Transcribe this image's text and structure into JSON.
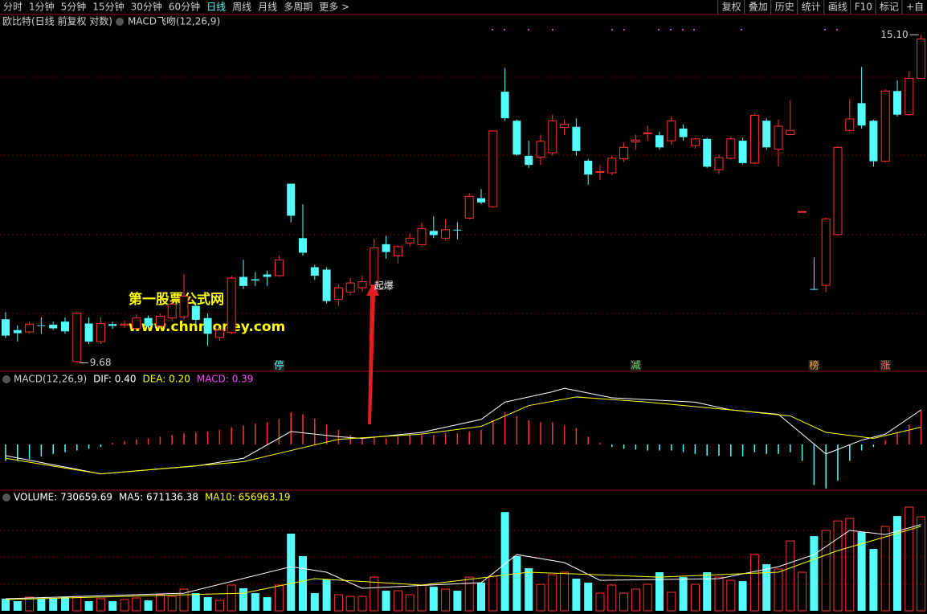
{
  "toolbar": {
    "left": [
      "分时",
      "1分钟",
      "5分钟",
      "15分钟",
      "30分钟",
      "60分钟",
      "日线",
      "周线",
      "月线",
      "多周期",
      "更多 >"
    ],
    "active": 6,
    "right": [
      "复权",
      "叠加",
      "历史",
      "统计",
      "画线",
      "F10",
      "标记",
      "+自"
    ]
  },
  "watermark": [
    "第一股票公式网",
    "www.chnmoney.com"
  ],
  "chart_data": [
    {
      "type": "candlestick",
      "title": "欧比特(日线 前复权 对数)",
      "indicator": "MACD飞吻(12,26,9)",
      "up_color": "#ff3232",
      "down_color": "#54fcfc",
      "ylim": [
        9.54,
        15.21
      ],
      "open": [
        10.4,
        10.22,
        10.19,
        10.3,
        10.31,
        10.36,
        9.7,
        10.33,
        10.03,
        10.32,
        10.3,
        10.25,
        10.42,
        10.29,
        10.42,
        10.44,
        10.62,
        10.42,
        10.1,
        10.18,
        11.1,
        11.06,
        11.14,
        11.12,
        12.64,
        11.74,
        11.26,
        11.22,
        10.73,
        10.85,
        10.92,
        10.96,
        11.64,
        11.45,
        11.66,
        11.63,
        11.86,
        11.74,
        11.88,
        12.07,
        12.4,
        12.26,
        14.16,
        13.68,
        13.1,
        13.08,
        13.15,
        13.57,
        13.58,
        13.02,
        12.83,
        12.82,
        13.05,
        13.33,
        13.48,
        13.44,
        13.35,
        13.55,
        13.27,
        13.38,
        12.87,
        13.06,
        13.35,
        12.98,
        13.68,
        13.21,
        13.45,
        12.18,
        10.9,
        10.96,
        11.8,
        13.52,
        13.97,
        13.68,
        13.01,
        14.17,
        13.78,
        14.38
      ],
      "close": [
        10.13,
        10.17,
        10.32,
        10.29,
        10.25,
        10.2,
        10.5,
        10.03,
        10.33,
        10.29,
        10.32,
        10.42,
        10.29,
        10.45,
        10.65,
        10.78,
        10.39,
        10.16,
        10.22,
        11.08,
        10.95,
        11.04,
        11.1,
        11.38,
        12.11,
        11.5,
        11.12,
        10.7,
        10.92,
        11.0,
        11.02,
        11.58,
        11.51,
        11.6,
        11.74,
        11.9,
        11.79,
        11.88,
        11.87,
        12.43,
        12.33,
        13.51,
        13.72,
        13.12,
        12.95,
        13.34,
        13.68,
        13.62,
        13.18,
        12.79,
        12.84,
        13.06,
        13.24,
        13.36,
        13.48,
        13.24,
        13.68,
        13.41,
        13.38,
        12.92,
        13.07,
        13.38,
        12.98,
        13.77,
        13.24,
        13.59,
        13.52,
        12.18,
        10.89,
        12.06,
        13.24,
        13.71,
        13.6,
        13.01,
        14.17,
        13.78,
        14.38,
        15.03
      ],
      "high": [
        10.52,
        10.3,
        10.36,
        10.43,
        10.36,
        10.43,
        10.52,
        10.43,
        10.43,
        10.36,
        10.38,
        10.48,
        10.46,
        10.5,
        10.7,
        11.15,
        10.68,
        10.5,
        10.26,
        11.12,
        11.38,
        11.18,
        11.2,
        11.45,
        12.64,
        12.3,
        11.3,
        11.26,
        10.98,
        11.08,
        11.12,
        11.72,
        11.78,
        11.62,
        11.82,
        12.0,
        12.1,
        12.05,
        12.0,
        12.48,
        12.55,
        13.52,
        14.55,
        13.7,
        13.35,
        13.45,
        13.78,
        13.7,
        13.72,
        13.05,
        12.95,
        13.1,
        13.32,
        13.45,
        13.6,
        13.5,
        13.75,
        13.62,
        13.4,
        13.4,
        13.12,
        13.42,
        13.4,
        13.8,
        13.72,
        13.7,
        14.02,
        12.18,
        11.42,
        12.08,
        13.26,
        14.04,
        14.57,
        13.7,
        14.2,
        14.35,
        14.5,
        15.1
      ],
      "low": [
        10.09,
        10.03,
        10.16,
        10.16,
        10.22,
        10.16,
        9.68,
        9.99,
        9.99,
        10.24,
        10.26,
        10.22,
        10.26,
        10.25,
        10.38,
        10.4,
        10.3,
        9.96,
        10.05,
        10.15,
        10.9,
        10.95,
        10.95,
        11.1,
        12.0,
        11.45,
        11.05,
        10.66,
        10.62,
        10.8,
        10.85,
        10.92,
        11.4,
        11.32,
        11.6,
        11.6,
        11.74,
        11.7,
        11.72,
        12.05,
        12.3,
        12.24,
        13.68,
        13.1,
        12.9,
        12.95,
        13.1,
        13.45,
        13.1,
        12.62,
        12.7,
        12.78,
        13.0,
        13.2,
        13.35,
        13.2,
        13.28,
        13.35,
        13.22,
        12.9,
        12.8,
        13.04,
        12.96,
        12.96,
        13.2,
        12.93,
        13.44,
        12.18,
        10.89,
        10.85,
        11.78,
        13.5,
        13.55,
        12.92,
        12.99,
        13.75,
        13.76,
        14.36
      ],
      "extremes": [
        {
          "value": 15.1,
          "label": "15.10",
          "x": 77
        },
        {
          "value": 9.68,
          "label": "9.68",
          "x": 6
        }
      ],
      "annotations": [
        {
          "text": "起爆",
          "x": 31
        }
      ],
      "signals": [
        {
          "text": "停",
          "x": 23,
          "color": "#54fcfc"
        },
        {
          "text": "减",
          "x": 53,
          "color": "#66dd66"
        },
        {
          "text": "榜",
          "x": 68,
          "color": "#ffaa44"
        },
        {
          "text": "涨",
          "x": 74,
          "color": "#ff6666"
        }
      ]
    },
    {
      "type": "macd",
      "title": "MACD(12,26,9)",
      "ylim": [
        -0.53,
        0.81
      ],
      "histogram": {
        "name": "MACD: 0.39",
        "label_color": "#ff44ff",
        "up_color": "#ff3232",
        "down_color": "#54fcfc",
        "values": [
          -0.19,
          -0.19,
          -0.17,
          -0.14,
          -0.11,
          -0.09,
          -0.07,
          -0.05,
          -0.03,
          0.02,
          0.04,
          0.06,
          0.07,
          0.09,
          0.11,
          0.13,
          0.14,
          0.15,
          0.17,
          0.2,
          0.22,
          0.24,
          0.26,
          0.3,
          0.37,
          0.35,
          0.3,
          0.23,
          0.17,
          0.11,
          0.07,
          0.09,
          0.07,
          0.09,
          0.11,
          0.11,
          0.11,
          0.13,
          0.13,
          0.15,
          0.17,
          0.28,
          0.37,
          0.33,
          0.28,
          0.26,
          0.26,
          0.22,
          0.19,
          0.09,
          0.02,
          -0.03,
          -0.05,
          -0.06,
          -0.07,
          -0.07,
          -0.07,
          -0.09,
          -0.11,
          -0.13,
          -0.13,
          -0.14,
          -0.14,
          -0.09,
          -0.11,
          -0.11,
          -0.09,
          -0.19,
          -0.47,
          -0.51,
          -0.42,
          -0.19,
          -0.07,
          -0.03,
          0.05,
          0.14,
          0.23,
          0.39
        ]
      },
      "series": [
        {
          "name": "DIF: 0.40",
          "color": "#ffffff",
          "x": [
            0,
            8,
            16,
            20,
            24,
            28,
            30,
            35,
            40,
            42,
            46,
            47,
            51,
            58,
            61,
            65,
            67,
            69,
            72,
            74,
            77
          ],
          "values": [
            -0.13,
            -0.34,
            -0.25,
            -0.16,
            0.15,
            0.09,
            0.07,
            0.14,
            0.29,
            0.49,
            0.61,
            0.65,
            0.54,
            0.49,
            0.4,
            0.35,
            0.12,
            -0.11,
            0.05,
            0.12,
            0.4
          ]
        },
        {
          "name": "DEA: 0.20",
          "color": "#ffff00",
          "x": [
            0,
            8,
            20,
            24,
            28,
            35,
            40,
            44,
            48,
            54,
            61,
            66,
            69,
            73,
            77
          ],
          "values": [
            -0.16,
            -0.34,
            -0.2,
            -0.07,
            0.06,
            0.12,
            0.21,
            0.45,
            0.55,
            0.49,
            0.4,
            0.33,
            0.14,
            0.07,
            0.2
          ]
        }
      ]
    },
    {
      "type": "volume",
      "ylim": [
        0,
        825000
      ],
      "bars": {
        "name": "VOLUME: 730659.69",
        "label_color": "#ffffff",
        "values": [
          94000,
          75000,
          106000,
          94000,
          94000,
          106000,
          112000,
          75000,
          94000,
          75000,
          87000,
          100000,
          81000,
          125000,
          112000,
          169000,
          137000,
          106000,
          81000,
          200000,
          175000,
          137000,
          106000,
          200000,
          600000,
          425000,
          137000,
          244000,
          125000,
          112000,
          112000,
          262000,
          156000,
          156000,
          125000,
          200000,
          187000,
          169000,
          156000,
          262000,
          219000,
          269000,
          768000,
          425000,
          331000,
          206000,
          281000,
          300000,
          250000,
          219000,
          137000,
          200000,
          137000,
          169000,
          206000,
          300000,
          144000,
          262000,
          206000,
          300000,
          262000,
          237000,
          231000,
          437000,
          362000,
          325000,
          543000,
          300000,
          581000,
          625000,
          699000,
          718000,
          612000,
          481000,
          656000,
          737000,
          806000,
          730659.69
        ]
      },
      "series": [
        {
          "name": "MA5: 671136.38",
          "color": "#ffffff",
          "x": [
            0,
            15,
            24,
            27,
            30,
            40,
            43,
            47,
            50,
            60,
            65,
            68,
            71,
            74,
            77
          ],
          "values": [
            94000,
            137000,
            343000,
            300000,
            175000,
            219000,
            437000,
            375000,
            237000,
            250000,
            343000,
            437000,
            625000,
            593000,
            671136.38
          ]
        },
        {
          "name": "MA10: 656963.19",
          "color": "#ffff00",
          "x": [
            0,
            20,
            26,
            35,
            44,
            55,
            65,
            70,
            74,
            77
          ],
          "values": [
            87000,
            137000,
            250000,
            200000,
            300000,
            262000,
            300000,
            468000,
            575000,
            656963.19
          ]
        }
      ]
    }
  ]
}
